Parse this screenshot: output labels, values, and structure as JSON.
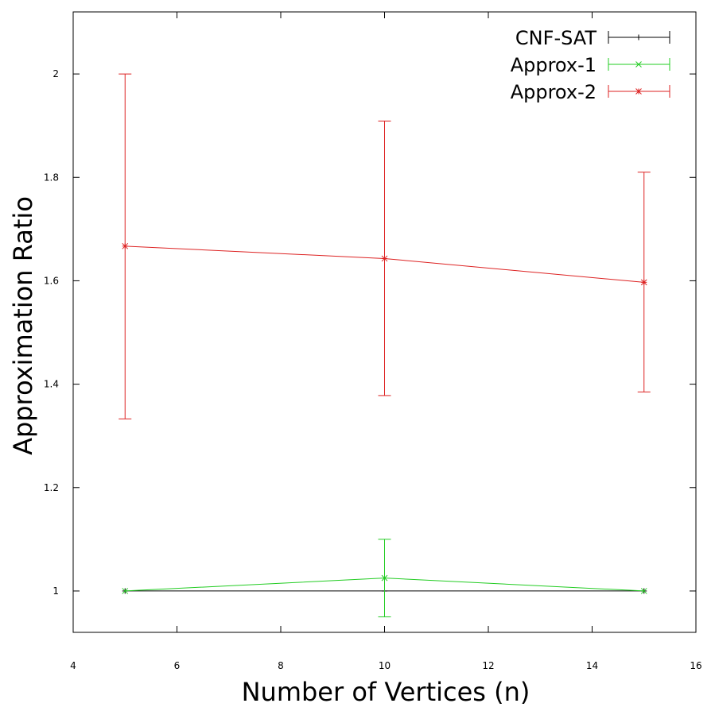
{
  "chart_data": {
    "type": "line",
    "xlabel": "Number of Vertices (n)",
    "ylabel": "Approximation Ratio",
    "xlim": [
      4,
      16
    ],
    "ylim": [
      0.92,
      2.12
    ],
    "xticks": [
      4,
      6,
      8,
      10,
      12,
      14,
      16
    ],
    "yticks": [
      1,
      1.2,
      1.4,
      1.6,
      1.8,
      2
    ],
    "grid": false,
    "legend_position": "top-right",
    "series": [
      {
        "name": "CNF-SAT",
        "color": "#000000",
        "marker": "plus",
        "x": [
          5,
          10,
          15
        ],
        "y": [
          1,
          1,
          1
        ],
        "err_low": [
          1,
          1,
          1
        ],
        "err_high": [
          1,
          1,
          1
        ]
      },
      {
        "name": "Approx-1",
        "color": "#22cc22",
        "marker": "x",
        "x": [
          5,
          10,
          15
        ],
        "y": [
          1,
          1.025,
          1
        ],
        "err_low": [
          1,
          0.95,
          1
        ],
        "err_high": [
          1,
          1.1,
          1
        ]
      },
      {
        "name": "Approx-2",
        "color": "#dd2222",
        "marker": "star",
        "x": [
          5,
          10,
          15
        ],
        "y": [
          1.667,
          1.643,
          1.597
        ],
        "err_low": [
          1.333,
          1.378,
          1.385
        ],
        "err_high": [
          2,
          1.909,
          1.81
        ]
      }
    ]
  }
}
